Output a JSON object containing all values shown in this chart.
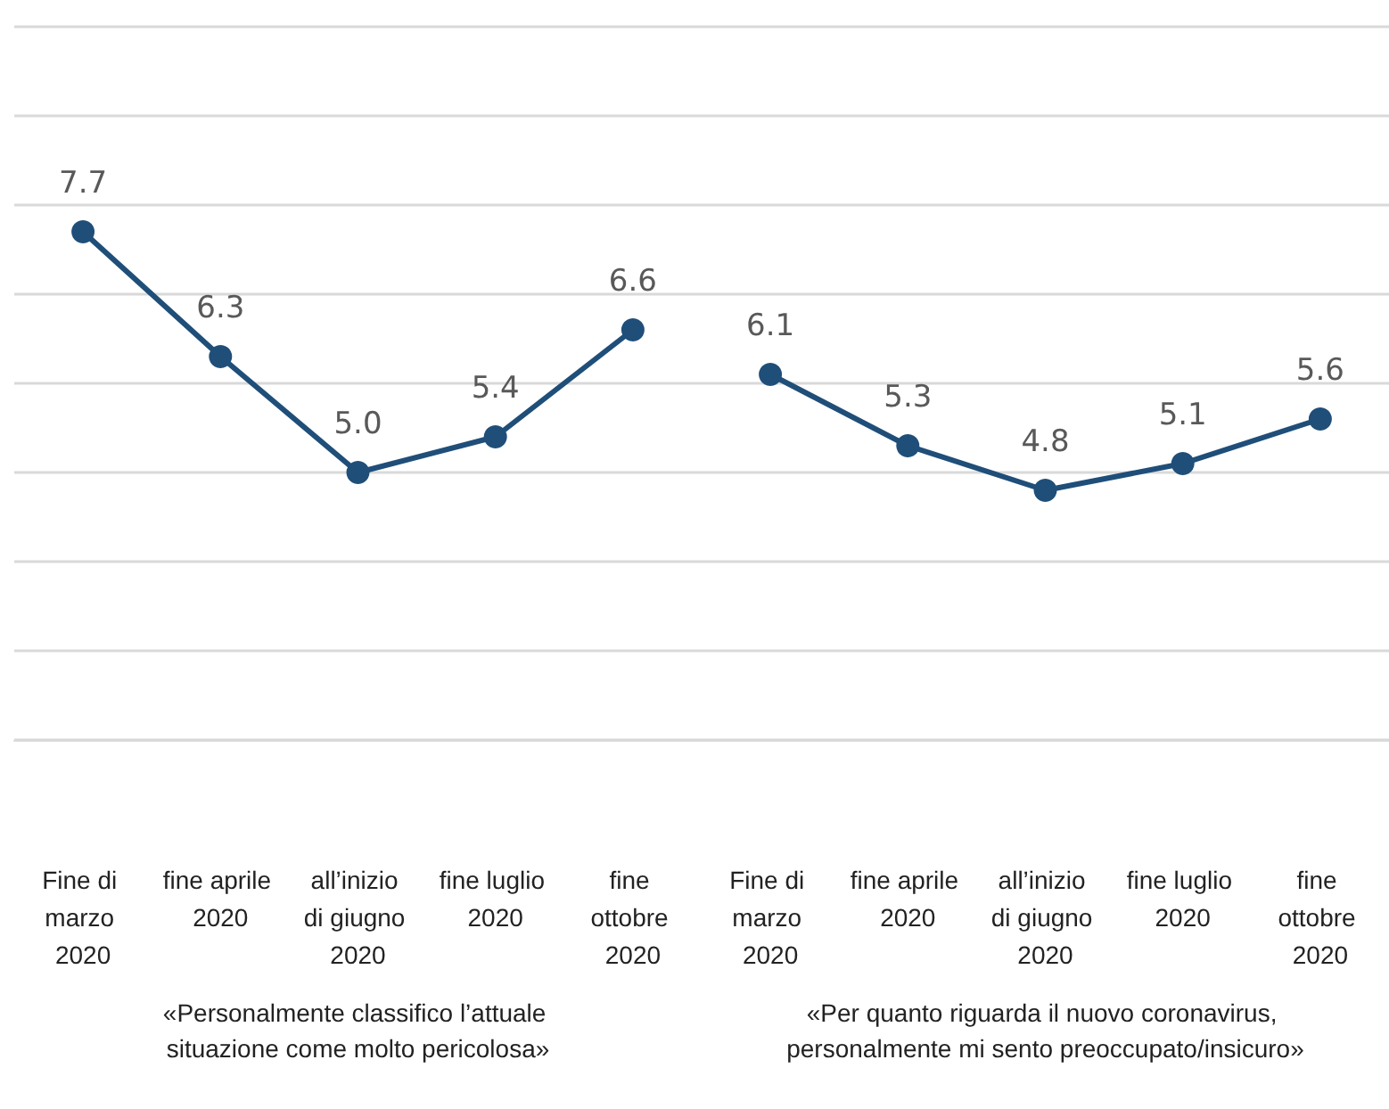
{
  "chart_data": {
    "type": "line",
    "categories": [
      "Fine di marzo 2020",
      "fine aprile 2020",
      "all’inizio di giugno 2020",
      "fine luglio 2020",
      "fine ottobre 2020",
      "Fine di marzo 2020",
      "fine aprile 2020",
      "all’inizio di giugno 2020",
      "fine luglio 2020",
      "fine ottobre 2020"
    ],
    "series": [
      {
        "color": "#1f4e79",
        "values": [
          7.7,
          6.3,
          5.0,
          5.4,
          6.6,
          null,
          null,
          null,
          null,
          null
        ],
        "value_labels": [
          "7.7",
          "6.3",
          "5.0",
          "5.4",
          "6.6",
          null,
          null,
          null,
          null,
          null
        ]
      },
      {
        "color": "#1f4e79",
        "values": [
          null,
          null,
          null,
          null,
          null,
          6.1,
          5.3,
          4.8,
          5.1,
          5.6
        ]
      }
    ],
    "ylim": [
      2,
      10
    ],
    "yticks": [
      {
        "value": 2,
        "label": null
      },
      {
        "value": 3,
        "label": null
      },
      {
        "value": 4,
        "label": null
      },
      {
        "value": 5,
        "label": null
      },
      {
        "value": 6,
        "label": null
      },
      {
        "value": 7,
        "label": null
      },
      {
        "value": 8,
        "label": null
      },
      {
        "value": 9,
        "label": null
      },
      {
        "value": 10,
        "label": null
      }
    ],
    "tick_labels": "x",
    "grid": "y",
    "data_labels": true,
    "marker": "circle",
    "line_style": "solid",
    "annotations": [
      "«Personalmente classifico l’attuale situazione come molto pericolosa»",
      "«Per quanto riguarda il nuovo coronavirus, personalmente mi sento preoccupato/insicuro»"
    ]
  }
}
